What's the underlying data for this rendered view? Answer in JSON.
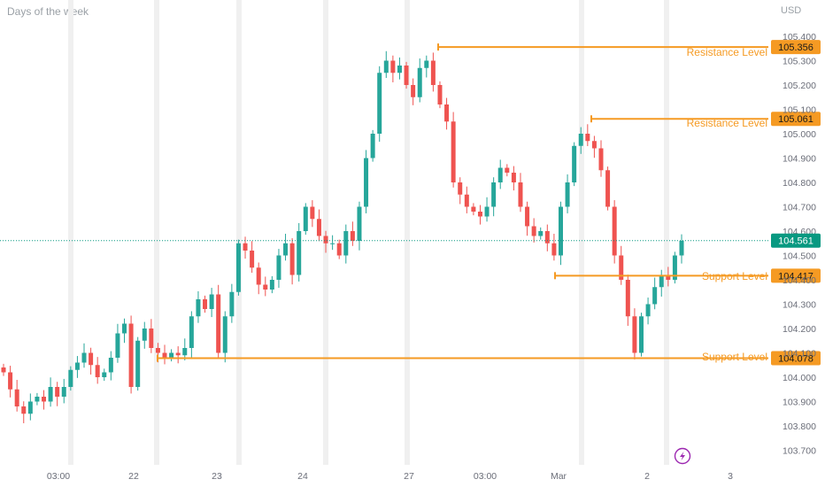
{
  "header": {
    "title": "Days of the week",
    "currency": "USD"
  },
  "colors": {
    "up": "#26a69a",
    "down": "#ef5350",
    "level": "#f59a23",
    "grid": "#f0f0f0",
    "current": "#089981",
    "replay_icon": "#9c27b0"
  },
  "icons": {
    "replay": "lightning-bolt-icon"
  },
  "current_price": {
    "value": 104.561,
    "label": "104.561"
  },
  "chart_data": {
    "type": "candlestick",
    "title": "",
    "ylim": [
      103.64,
      105.44
    ],
    "y_ticks": [
      "103.700",
      "103.800",
      "103.900",
      "104.000",
      "104.100",
      "104.200",
      "104.300",
      "104.400",
      "104.500",
      "104.600",
      "104.700",
      "104.800",
      "104.900",
      "105.000",
      "105.100",
      "105.200",
      "105.300",
      "105.400"
    ],
    "x_ticks": [
      "03:00",
      "22",
      "23",
      "24",
      "27",
      "03:00",
      "Mar",
      "2",
      "3"
    ],
    "levels": [
      {
        "name": "Resistance Level",
        "value": 105.356,
        "label": "105.356"
      },
      {
        "name": "Resistance Level",
        "value": 105.061,
        "label": "105.061"
      },
      {
        "name": "Support Level",
        "value": 104.417,
        "label": "104.417"
      },
      {
        "name": "Support Level",
        "value": 104.078,
        "label": "104.078"
      }
    ],
    "close_path": [
      104.02,
      103.95,
      103.88,
      103.85,
      103.9,
      103.92,
      103.9,
      103.96,
      103.92,
      103.96,
      104.03,
      104.06,
      104.1,
      104.05,
      104.0,
      104.02,
      104.08,
      104.18,
      104.22,
      103.96,
      104.15,
      104.2,
      104.12,
      104.1,
      104.08,
      104.1,
      104.09,
      104.12,
      104.25,
      104.32,
      104.28,
      104.34,
      104.1,
      104.25,
      104.35,
      104.55,
      104.52,
      104.45,
      104.38,
      104.36,
      104.4,
      104.5,
      104.55,
      104.42,
      104.6,
      104.7,
      104.65,
      104.58,
      104.55,
      104.55,
      104.5,
      104.6,
      104.56,
      104.7,
      104.9,
      105.0,
      105.25,
      105.3,
      105.25,
      105.28,
      105.2,
      105.15,
      105.27,
      105.3,
      105.2,
      105.12,
      105.05,
      104.8,
      104.75,
      104.7,
      104.68,
      104.66,
      104.7,
      104.8,
      104.86,
      104.84,
      104.8,
      104.7,
      104.62,
      104.58,
      104.6,
      104.55,
      104.5,
      104.7,
      104.8,
      104.95,
      105.0,
      104.97,
      104.94,
      104.85,
      104.7,
      104.5,
      104.4,
      104.25,
      104.1,
      104.25,
      104.3,
      104.37,
      104.42,
      104.4,
      104.5,
      104.56
    ]
  }
}
